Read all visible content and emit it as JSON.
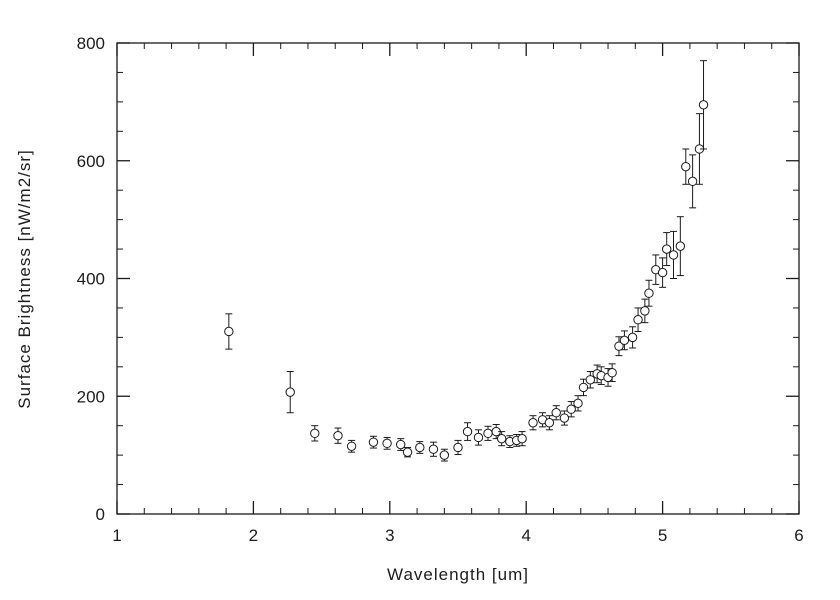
{
  "chart_data": {
    "type": "scatter",
    "title": "",
    "xlabel": "Wavelength [um]",
    "ylabel": "Surface Brightness [nW/m2/sr]",
    "xlim": [
      1,
      6
    ],
    "ylim": [
      0,
      800
    ],
    "x_ticks": [
      1,
      2,
      3,
      4,
      5,
      6
    ],
    "y_ticks": [
      0,
      200,
      400,
      600,
      800
    ],
    "x_minor_step": 0.2,
    "y_minor_step": 50,
    "grid": false,
    "legend": "none",
    "marker": "open-circle",
    "error_bars": true,
    "colors": {
      "axis": "#1a1a1a",
      "marker": "#1a1a1a",
      "background": "#ffffff"
    },
    "series": [
      {
        "name": "surface-brightness",
        "x": [
          1.82,
          2.27,
          2.45,
          2.62,
          2.72,
          2.88,
          2.98,
          3.08,
          3.13,
          3.22,
          3.32,
          3.4,
          3.5,
          3.57,
          3.65,
          3.72,
          3.78,
          3.82,
          3.88,
          3.93,
          3.97,
          4.05,
          4.12,
          4.17,
          4.22,
          4.28,
          4.33,
          4.38,
          4.42,
          4.47,
          4.52,
          4.55,
          4.6,
          4.63,
          4.68,
          4.72,
          4.78,
          4.82,
          4.87,
          4.9,
          4.95,
          5.0,
          5.03,
          5.08,
          5.13,
          5.17,
          5.22,
          5.27,
          5.3
        ],
        "y": [
          310,
          207,
          137,
          133,
          115,
          122,
          120,
          118,
          105,
          113,
          110,
          100,
          113,
          140,
          130,
          137,
          140,
          128,
          123,
          125,
          128,
          155,
          160,
          155,
          172,
          163,
          178,
          188,
          215,
          228,
          238,
          235,
          232,
          240,
          285,
          295,
          300,
          330,
          345,
          375,
          415,
          410,
          450,
          440,
          455,
          590,
          565,
          620,
          695
        ],
        "yerr": [
          30,
          35,
          13,
          13,
          10,
          10,
          10,
          10,
          8,
          10,
          12,
          10,
          12,
          15,
          13,
          12,
          12,
          12,
          10,
          10,
          12,
          12,
          12,
          12,
          12,
          12,
          13,
          13,
          14,
          14,
          15,
          15,
          15,
          15,
          16,
          16,
          18,
          20,
          20,
          22,
          25,
          25,
          28,
          40,
          50,
          30,
          45,
          60,
          75
        ]
      }
    ]
  }
}
